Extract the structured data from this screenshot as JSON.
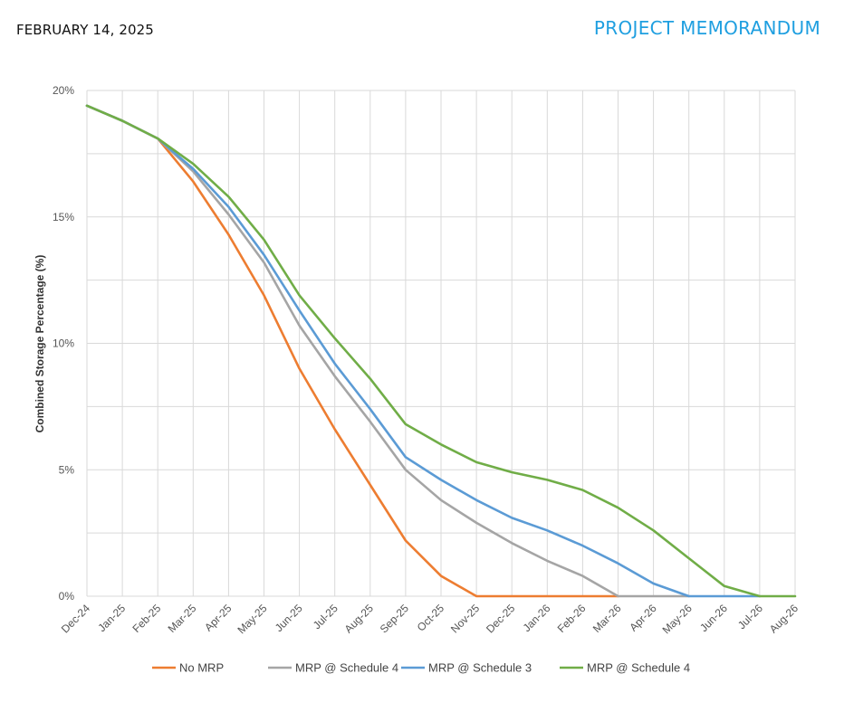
{
  "header": {
    "date": "FEBRUARY 14, 2025",
    "title": "PROJECT MEMORANDUM"
  },
  "colors": {
    "no_mrp": "#ed7d31",
    "sched4_gray": "#a5a5a5",
    "sched3": "#5b9bd5",
    "sched4_green": "#70ad47",
    "title": "#1f9fe0",
    "grid": "#d9d9d9"
  },
  "chart_data": {
    "type": "line",
    "title": "",
    "xlabel": "",
    "ylabel": "Combined Storage Percentage (%)",
    "ylim": [
      0,
      20
    ],
    "yticks": [
      0,
      5,
      10,
      15,
      20
    ],
    "ytick_labels": [
      "0%",
      "5%",
      "10%",
      "15%",
      "20%"
    ],
    "grid": true,
    "legend_position": "bottom",
    "categories": [
      "Dec-24",
      "Jan-25",
      "Feb-25",
      "Mar-25",
      "Apr-25",
      "May-25",
      "Jun-25",
      "Jul-25",
      "Aug-25",
      "Sep-25",
      "Oct-25",
      "Nov-25",
      "Dec-25",
      "Jan-26",
      "Feb-26",
      "Mar-26",
      "Apr-26",
      "May-26",
      "Jun-26",
      "Jul-26",
      "Aug-26"
    ],
    "series": [
      {
        "name": "No MRP",
        "color_key": "no_mrp",
        "values": [
          19.4,
          18.8,
          18.1,
          16.4,
          14.3,
          11.9,
          9.0,
          6.6,
          4.4,
          2.2,
          0.8,
          0,
          0,
          0,
          0,
          0,
          null,
          null,
          null,
          null,
          null
        ]
      },
      {
        "name": "MRP @ Schedule 4",
        "color_key": "sched4_gray",
        "values": [
          19.4,
          18.8,
          18.1,
          16.8,
          15.1,
          13.2,
          10.7,
          8.7,
          6.9,
          5.0,
          3.8,
          2.9,
          2.1,
          1.4,
          0.8,
          0,
          0,
          0,
          null,
          null,
          null
        ]
      },
      {
        "name": "MRP @ Schedule 3",
        "color_key": "sched3",
        "values": [
          19.4,
          18.8,
          18.1,
          16.9,
          15.4,
          13.5,
          11.3,
          9.2,
          7.4,
          5.5,
          4.6,
          3.8,
          3.1,
          2.6,
          2.0,
          1.3,
          0.5,
          0,
          0,
          0,
          null
        ]
      },
      {
        "name": "MRP @ Schedule 4",
        "color_key": "sched4_green",
        "values": [
          19.4,
          18.8,
          18.1,
          17.1,
          15.8,
          14.1,
          11.9,
          10.2,
          8.6,
          6.8,
          6.0,
          5.3,
          4.9,
          4.6,
          4.2,
          3.5,
          2.6,
          1.5,
          0.4,
          0,
          0
        ]
      }
    ]
  }
}
